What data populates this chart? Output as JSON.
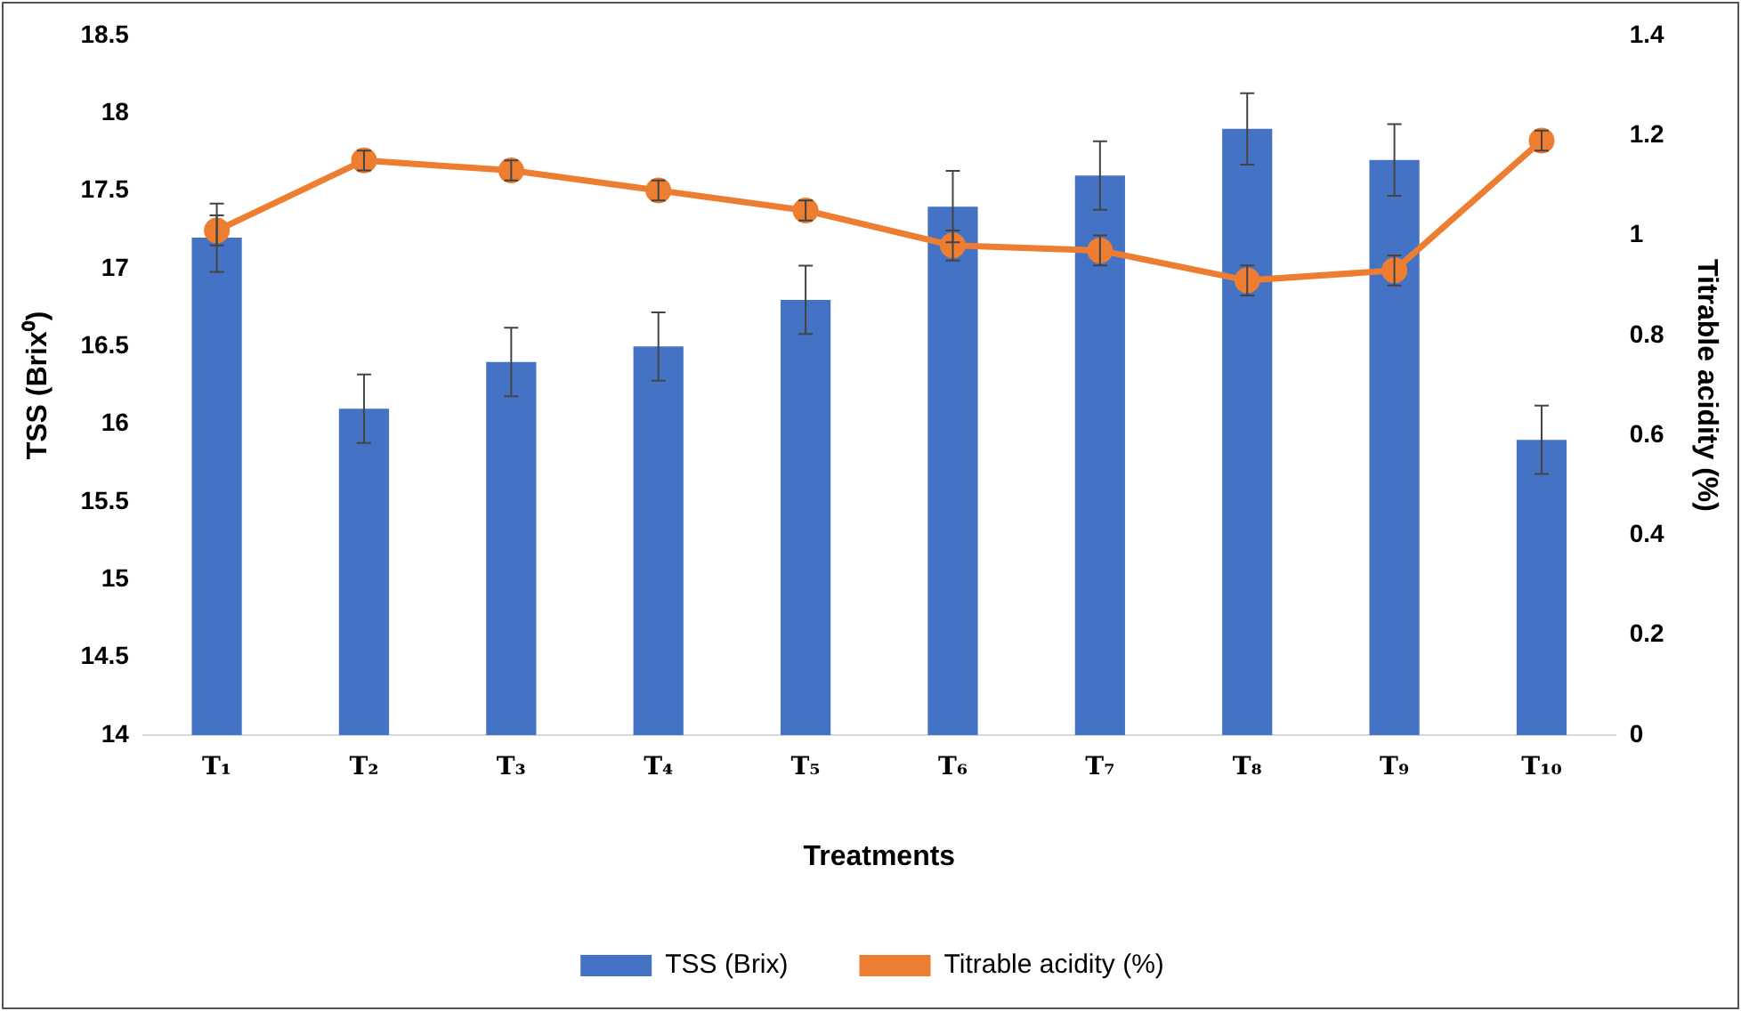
{
  "chart_data": {
    "type": "bar",
    "xlabel": "Treatments",
    "ylabel": "TSS (Brix⁰)",
    "y2label": "Titrable acidity (%)",
    "categories": [
      "T₁",
      "T₂",
      "T₃",
      "T₄",
      "T₅",
      "T₆",
      "T₇",
      "T₈",
      "T₉",
      "T₁₀"
    ],
    "series": [
      {
        "name": "TSS (Brix)",
        "color": "#4472c4",
        "values": [
          17.2,
          16.1,
          16.4,
          16.5,
          16.8,
          17.4,
          17.6,
          17.9,
          17.7,
          15.9
        ],
        "errors": [
          0.22,
          0.22,
          0.22,
          0.22,
          0.22,
          0.23,
          0.22,
          0.23,
          0.23,
          0.22
        ]
      },
      {
        "name": "Titrable acidity (%)",
        "type": "line",
        "axis": "y2",
        "color": "#ed7d31",
        "values": [
          1.01,
          1.15,
          1.13,
          1.09,
          1.05,
          0.98,
          0.97,
          0.91,
          0.93,
          1.19
        ],
        "errors": [
          0.03,
          0.02,
          0.02,
          0.02,
          0.02,
          0.03,
          0.03,
          0.03,
          0.03,
          0.02
        ]
      }
    ],
    "ylim": [
      14,
      18.5
    ],
    "yticks": [
      14,
      14.5,
      15,
      15.5,
      16,
      16.5,
      17,
      17.5,
      18,
      18.5
    ],
    "y2lim": [
      0,
      1.4
    ],
    "y2ticks": [
      0,
      0.2,
      0.4,
      0.6,
      0.8,
      1,
      1.2,
      1.4
    ],
    "grid": false,
    "legend": "bottom",
    "marker": "circle",
    "line_style": "solid"
  }
}
